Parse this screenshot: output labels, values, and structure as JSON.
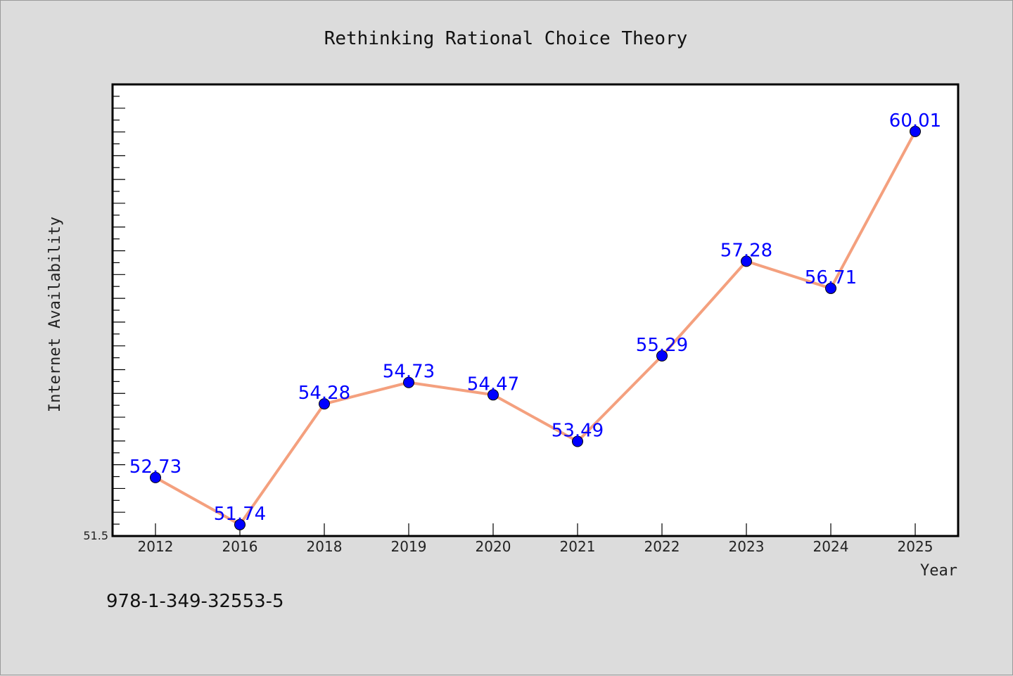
{
  "chart_data": {
    "type": "line",
    "title": "Rethinking Rational Choice Theory",
    "xlabel": "Year",
    "ylabel": "Internet Availability",
    "categories": [
      "2012",
      "2016",
      "2018",
      "2019",
      "2020",
      "2021",
      "2022",
      "2023",
      "2024",
      "2025"
    ],
    "series": [
      {
        "values": [
          52.73,
          51.74,
          54.28,
          54.73,
          54.47,
          53.49,
          55.29,
          57.28,
          56.71,
          60.01
        ],
        "data_labels": [
          "52.73",
          "51.74",
          "54.28",
          "54.73",
          "54.47",
          "53.49",
          "55.29",
          "57.28",
          "56.71",
          "60.01"
        ]
      }
    ],
    "ylim": [
      51.5,
      61.0
    ],
    "ytick_labels": [
      "51.5"
    ],
    "grid": false,
    "line_color": "#f4a07e",
    "marker_color": "#0000ff",
    "label_color": "#0000ff"
  },
  "footnote": "978-1-349-32553-5"
}
